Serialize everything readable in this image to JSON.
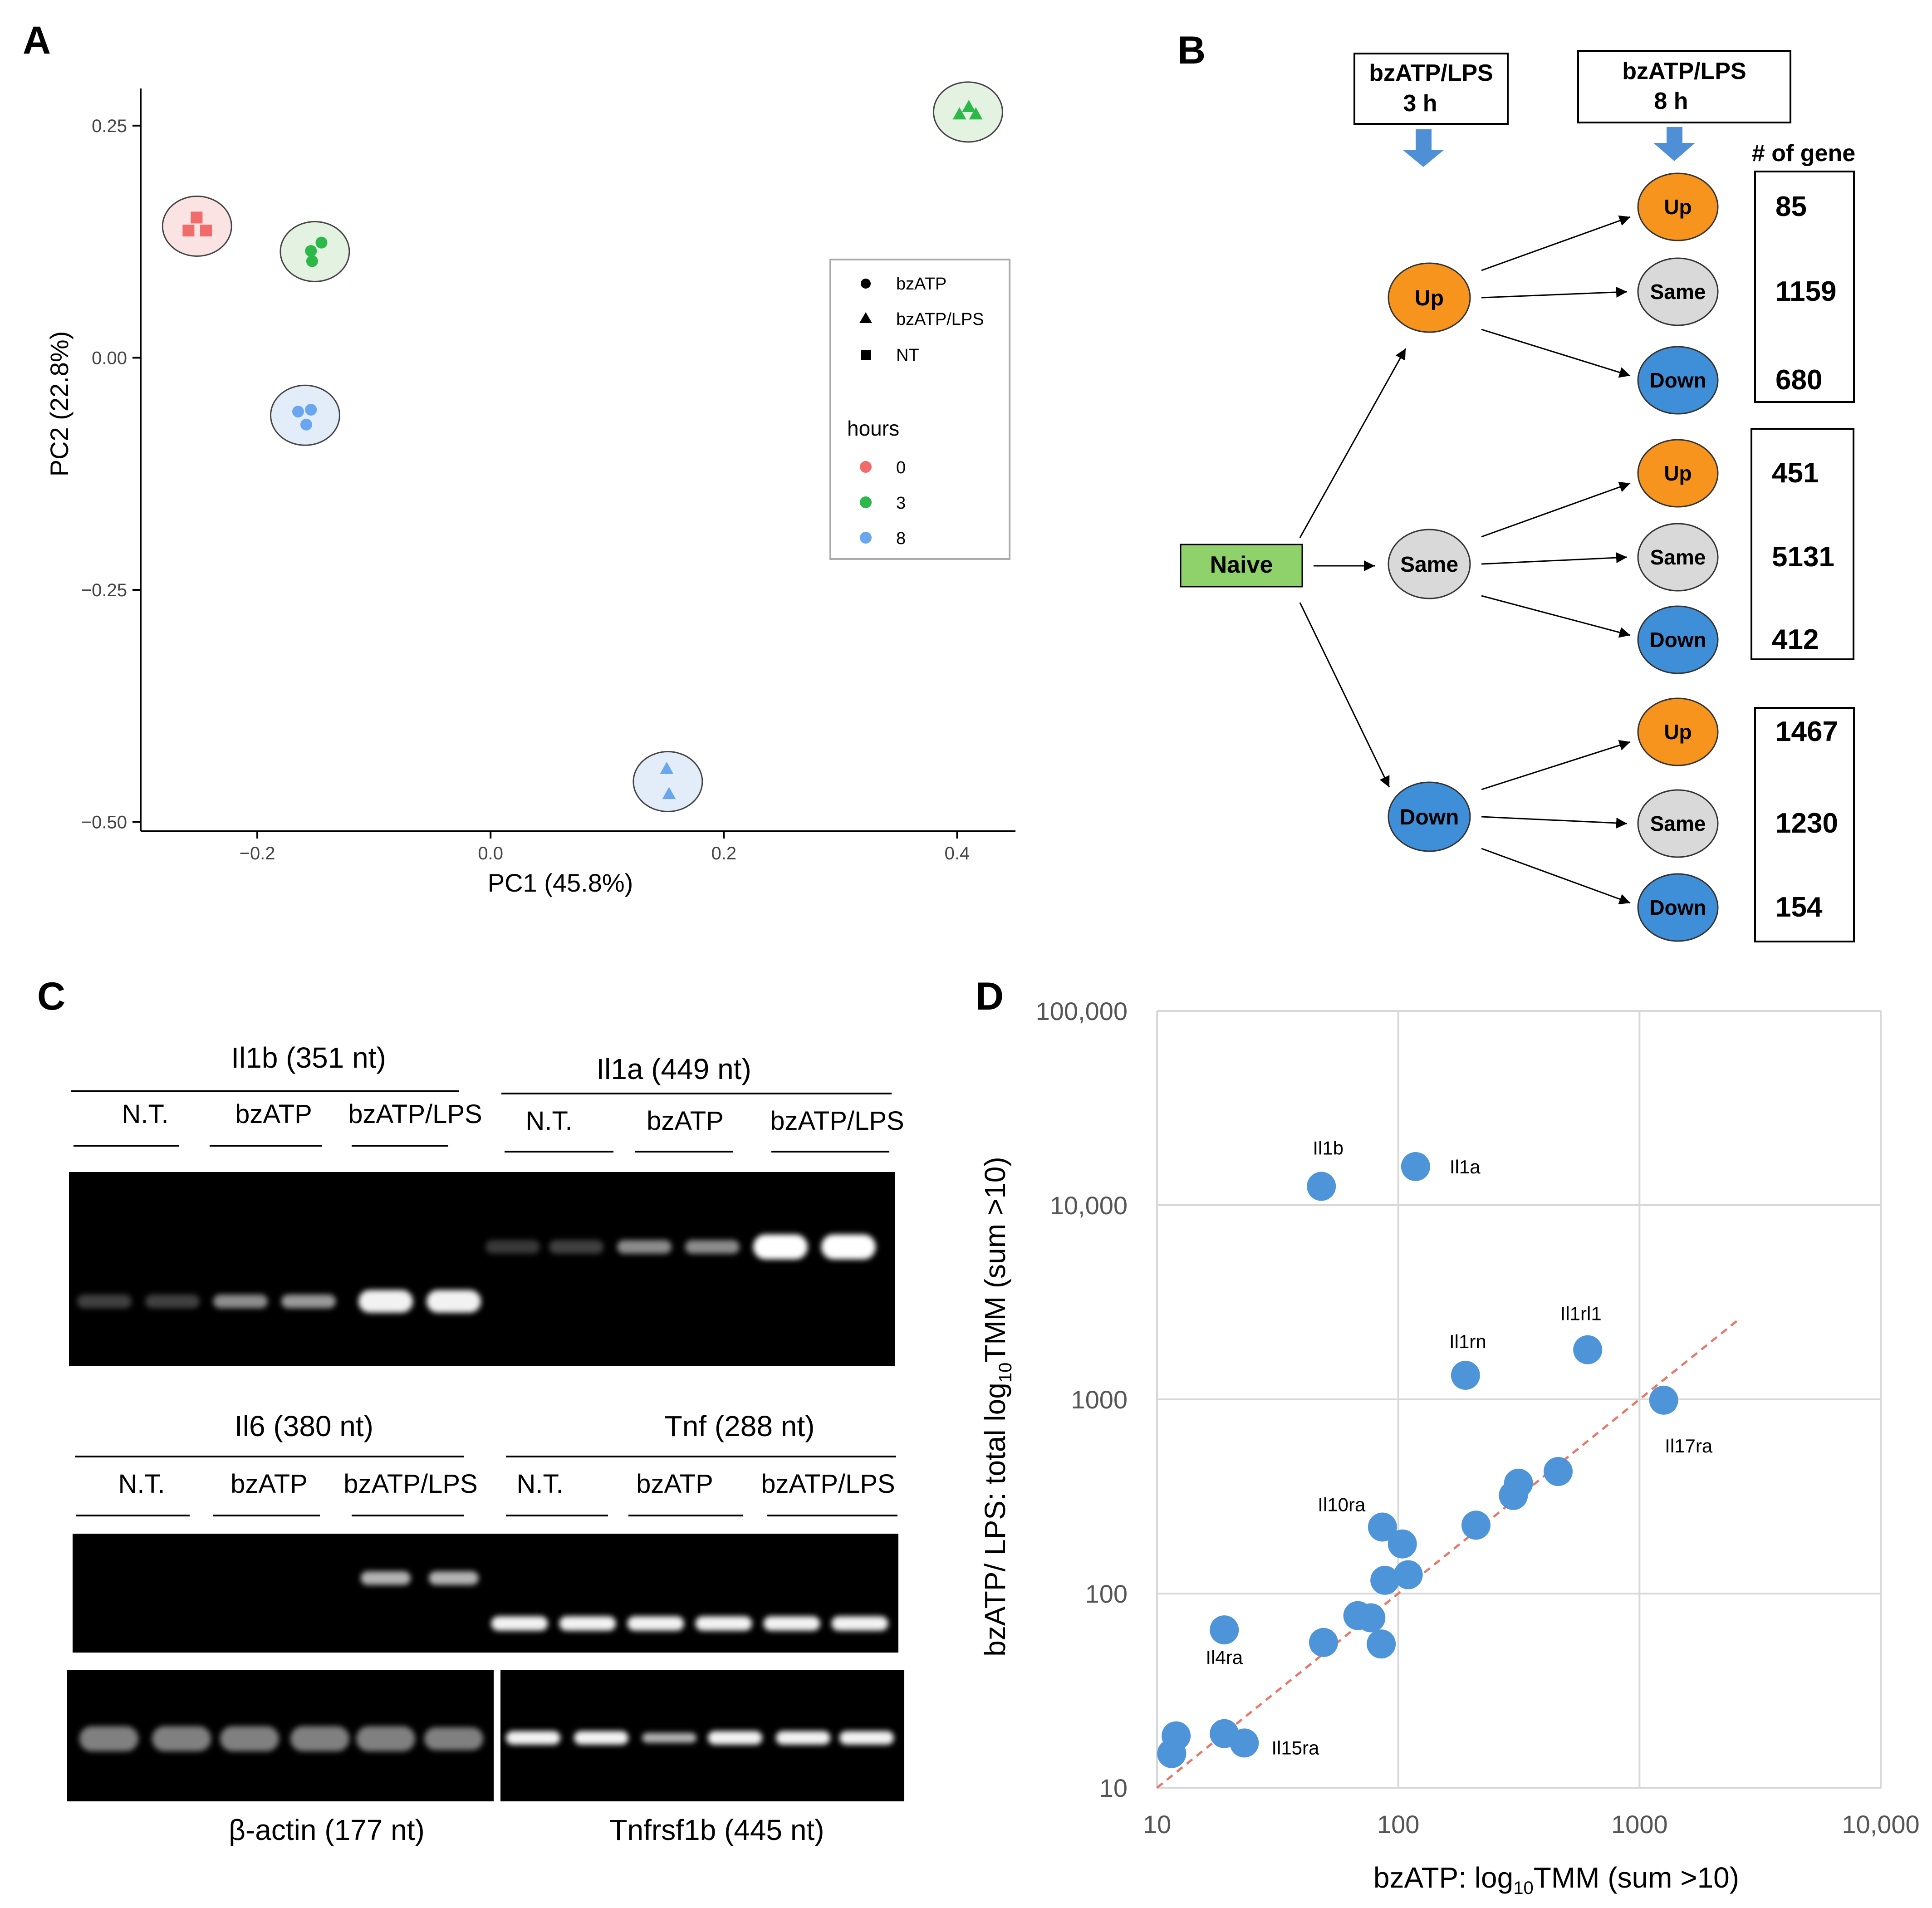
{
  "colors": {
    "naive_green": "#8fd16a",
    "up_orange": "#f7941d",
    "same_gray": "#d9d9d9",
    "down_blue": "#3f8fd8",
    "arrow_blue": "#4e8fd6",
    "dot_blue": "#4e94d8",
    "trend_red": "#e8786b",
    "hour0": "#f26b6b",
    "hour3": "#2db84a",
    "hour8": "#6aa5f0"
  },
  "panelA": {
    "label": "A",
    "xlabel": "PC1 (45.8%)",
    "ylabel": "PC2 (22.8%)",
    "legend": {
      "shapes": [
        "bzATP",
        "bzATP/LPS",
        "NT"
      ],
      "hours_title": "hours",
      "hours": [
        "0",
        "3",
        "8"
      ]
    },
    "chart_data": {
      "type": "scatter",
      "xlim": [
        -0.3,
        0.45
      ],
      "ylim": [
        -0.51,
        0.29
      ],
      "xticks": [
        -0.2,
        0.0,
        0.2,
        0.4
      ],
      "xtick_labels": [
        "−0.2",
        "0.0",
        "0.2",
        "0.4"
      ],
      "yticks": [
        0.25,
        0.0,
        -0.25,
        -0.5
      ],
      "ytick_labels": [
        "0.25",
        "0.00",
        "−0.25",
        "−0.50"
      ],
      "groups": [
        {
          "name": "NT 0 h",
          "shape": "square",
          "hour": "0",
          "points": [
            [
              -0.252,
              0.151
            ],
            [
              -0.259,
              0.137
            ],
            [
              -0.244,
              0.137
            ]
          ]
        },
        {
          "name": "bzATP 3 h",
          "shape": "circle",
          "hour": "3",
          "points": [
            [
              -0.145,
              0.124
            ],
            [
              -0.154,
              0.115
            ],
            [
              -0.153,
              0.104
            ]
          ]
        },
        {
          "name": "bzATP 8 h",
          "shape": "circle",
          "hour": "8",
          "points": [
            [
              -0.165,
              -0.058
            ],
            [
              -0.154,
              -0.056
            ],
            [
              -0.158,
              -0.072
            ]
          ]
        },
        {
          "name": "bzATP/LPS 3 h",
          "shape": "triangle",
          "hour": "3",
          "points": [
            [
              0.402,
              0.262
            ],
            [
              0.41,
              0.27
            ],
            [
              0.416,
              0.262
            ]
          ]
        },
        {
          "name": "bzATP/LPS 8 h",
          "shape": "triangle",
          "hour": "8",
          "points": [
            [
              0.151,
              -0.443
            ],
            [
              0.153,
              -0.47
            ]
          ]
        }
      ]
    }
  },
  "panelB": {
    "label": "B",
    "box3h": [
      "bzATP/LPS",
      "3 h"
    ],
    "box8h": [
      "bzATP/LPS",
      "8 h"
    ],
    "gene_header": "# of gene",
    "naive": "Naive",
    "mid_nodes": [
      "Up",
      "Same",
      "Down"
    ],
    "leaf_nodes": [
      "Up",
      "Same",
      "Down",
      "Up",
      "Same",
      "Down",
      "Up",
      "Same",
      "Down"
    ],
    "counts": [
      "85",
      "1159",
      "680",
      "451",
      "5131",
      "412",
      "1467",
      "1230",
      "154"
    ]
  },
  "panelC": {
    "label": "C",
    "il1b_title": "Il1b (351 nt)",
    "il1a_title": "Il1a (449 nt)",
    "il6_title": "Il6 (380 nt)",
    "tnf_title": "Tnf (288 nt)",
    "actin_title": "β-actin (177 nt)",
    "tnfrsf1b_title": "Tnfrsf1b (445 nt)",
    "groups": [
      "N.T.",
      "bzATP",
      "bzATP/LPS"
    ]
  },
  "panelD": {
    "label": "D",
    "xlabel_prefix": "bzATP: log",
    "xlabel_sub": "10",
    "xlabel_suffix": "TMM (sum >10)",
    "ylabel_prefix": "bzATP/ LPS: total log",
    "ylabel_sub": "10",
    "ylabel_suffix": "TMM (sum >10)",
    "chart_data": {
      "type": "scatter",
      "x_scale": "log10",
      "y_scale": "log10",
      "xlim": [
        10,
        10000
      ],
      "ylim": [
        10,
        100000
      ],
      "xticks": [
        10,
        100,
        1000,
        10000
      ],
      "xtick_labels": [
        "10",
        "100",
        "1000",
        "10,000"
      ],
      "yticks": [
        10,
        100,
        1000,
        10000,
        100000
      ],
      "ytick_labels": [
        "10",
        "100",
        "1000",
        "10,000",
        "100,000"
      ],
      "grid": true,
      "trendline": {
        "style": "dashed",
        "from": [
          10,
          10
        ],
        "to": [
          2600,
          2600
        ]
      },
      "points": [
        {
          "x": 48,
          "y": 12500,
          "label": "Il1b"
        },
        {
          "x": 118,
          "y": 15800,
          "label": "Il1a"
        },
        {
          "x": 190,
          "y": 1330,
          "label": "Il1rn"
        },
        {
          "x": 610,
          "y": 1800,
          "label": "Il1rl1"
        },
        {
          "x": 1260,
          "y": 990,
          "label": "Il17ra"
        },
        {
          "x": 86,
          "y": 220,
          "label": "Il10ra"
        },
        {
          "x": 19,
          "y": 65,
          "label": "Il4ra"
        },
        {
          "x": 23,
          "y": 17,
          "label": "Il15ra"
        },
        {
          "x": 460,
          "y": 425,
          "label": ""
        },
        {
          "x": 315,
          "y": 370,
          "label": ""
        },
        {
          "x": 300,
          "y": 320,
          "label": ""
        },
        {
          "x": 210,
          "y": 225,
          "label": ""
        },
        {
          "x": 104,
          "y": 180,
          "label": ""
        },
        {
          "x": 110,
          "y": 125,
          "label": ""
        },
        {
          "x": 88,
          "y": 117,
          "label": ""
        },
        {
          "x": 68,
          "y": 77,
          "label": ""
        },
        {
          "x": 77,
          "y": 75,
          "label": ""
        },
        {
          "x": 49,
          "y": 56,
          "label": ""
        },
        {
          "x": 85,
          "y": 55,
          "label": ""
        },
        {
          "x": 19,
          "y": 19,
          "label": ""
        },
        {
          "x": 12,
          "y": 18.5,
          "label": ""
        },
        {
          "x": 11.5,
          "y": 15,
          "label": ""
        }
      ]
    }
  }
}
